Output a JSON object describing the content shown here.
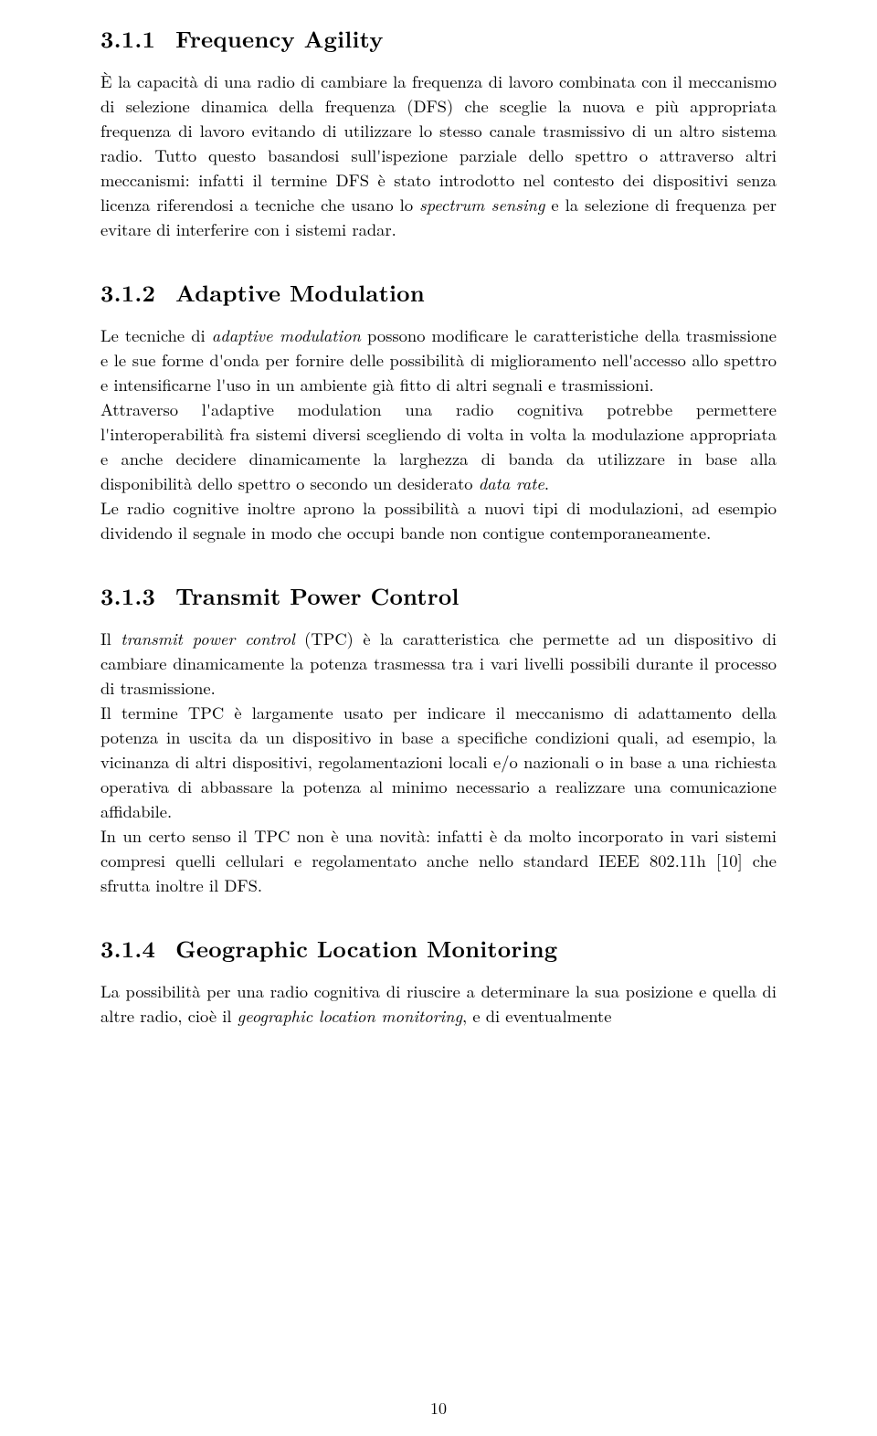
{
  "page_number": "10",
  "sections": [
    {
      "number": "3.1.1",
      "title": "Frequency Agility",
      "paragraphs": [
        "È la capacità di una radio di cambiare la frequenza di lavoro combinata con il meccanismo di selezione dinamica della frequenza (DFS) che sceglie la nuova e più appropriata frequenza di lavoro evitando di utilizzare lo stesso canale trasmissivo di un altro sistema radio. Tutto questo basandosi sull'ispezione parziale dello spettro o attraverso altri meccanismi: infatti il termine DFS è stato introdotto nel contesto dei dispositivi senza licenza riferendosi a tecniche che usano lo <i>spectrum sensing</i> e la selezione di frequenza per evitare di interferire con i sistemi radar."
      ]
    },
    {
      "number": "3.1.2",
      "title": "Adaptive Modulation",
      "paragraphs": [
        "Le tecniche di <i>adaptive modulation</i> possono modificare le caratteristiche della trasmissione e le sue forme d'onda per fornire delle possibilità di miglioramento nell'accesso allo spettro e intensificarne l'uso in un ambiente già fitto di altri segnali e trasmissioni.",
        "Attraverso l'adaptive modulation una radio cognitiva potrebbe permettere l'interoperabilità fra sistemi diversi scegliendo di volta in volta la modulazione appropriata e anche decidere dinamicamente la larghezza di banda da utilizzare in base alla disponibilità dello spettro o secondo un desiderato <i>data rate</i>.",
        "Le radio cognitive inoltre aprono la possibilità a nuovi tipi di modulazioni, ad esempio dividendo il segnale in modo che occupi bande non contigue contemporaneamente."
      ]
    },
    {
      "number": "3.1.3",
      "title": "Transmit Power Control",
      "paragraphs": [
        "Il <i>transmit power control</i> (TPC) è la caratteristica che permette ad un dispositivo di cambiare dinamicamente la potenza trasmessa tra i vari livelli possibili durante il processo di trasmissione.",
        "Il termine TPC è largamente usato per indicare il meccanismo di adattamento della potenza in uscita da un dispositivo in base a specifiche condizioni quali, ad esempio, la vicinanza di altri dispositivi, regolamentazioni locali e/o nazionali o in base a una richiesta operativa di abbassare la potenza al minimo necessario a realizzare una comunicazione affidabile.",
        "In un certo senso il TPC non è una novità: infatti è da molto incorporato in vari sistemi compresi quelli cellulari e regolamentato anche nello standard IEEE 802.11h [10] che sfrutta inoltre il DFS."
      ]
    },
    {
      "number": "3.1.4",
      "title": "Geographic Location Monitoring",
      "paragraphs": [
        "La possibilità per una radio cognitiva di riuscire a determinare la sua posizione e quella di altre radio, cioè il <i>geographic location monitoring</i>, e di eventualmente"
      ]
    }
  ]
}
